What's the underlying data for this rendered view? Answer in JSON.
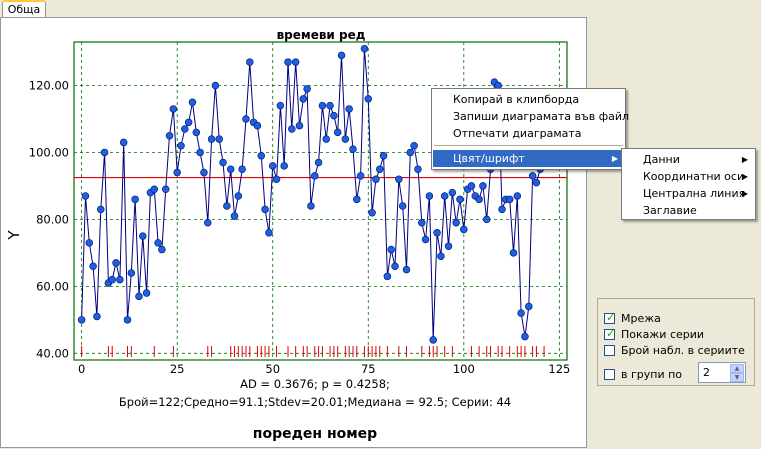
{
  "tab": {
    "label": "Обща"
  },
  "chart_data": {
    "type": "line",
    "title": "времеви ред",
    "xlabel": "пореден номер",
    "ylabel": "Y",
    "xlim": [
      -2,
      127
    ],
    "ylim": [
      38,
      133
    ],
    "x_ticks": [
      0,
      25,
      50,
      75,
      100,
      125
    ],
    "y_ticks": [
      40,
      60,
      80,
      100,
      120
    ],
    "y_tick_labels": [
      "40.00",
      "60.00",
      "80.00",
      "100.00",
      "120.00"
    ],
    "grid": true,
    "series": [
      {
        "color": "#000080",
        "marker_color": "#1f5fe0",
        "x": [
          0,
          1,
          2,
          3,
          4,
          5,
          6,
          7,
          8,
          9,
          10,
          11,
          12,
          13,
          14,
          15,
          16,
          17,
          18,
          19,
          20,
          21,
          22,
          23,
          24,
          25,
          26,
          27,
          28,
          29,
          30,
          31,
          32,
          33,
          34,
          35,
          36,
          37,
          38,
          39,
          40,
          41,
          42,
          43,
          44,
          45,
          46,
          47,
          48,
          49,
          50,
          51,
          52,
          53,
          54,
          55,
          56,
          57,
          58,
          59,
          60,
          61,
          62,
          63,
          64,
          65,
          66,
          67,
          68,
          69,
          70,
          71,
          72,
          73,
          74,
          75,
          76,
          77,
          78,
          79,
          80,
          81,
          82,
          83,
          84,
          85,
          86,
          87,
          88,
          89,
          90,
          91,
          92,
          93,
          94,
          95,
          96,
          97,
          98,
          99,
          100,
          101,
          102,
          103,
          104,
          105,
          106,
          107,
          108,
          109,
          110,
          111,
          112,
          113,
          114,
          115,
          116,
          117,
          118,
          119,
          120,
          121
        ],
        "y": [
          50,
          87,
          73,
          66,
          51,
          83,
          100,
          61,
          62,
          67,
          62,
          103,
          50,
          64,
          86,
          57,
          75,
          58,
          88,
          89,
          73,
          71,
          89,
          105,
          113,
          94,
          102,
          107,
          109,
          115,
          106,
          100,
          94,
          79,
          104,
          120,
          104,
          97,
          84,
          95,
          81,
          87,
          95,
          110,
          127,
          109,
          108,
          99,
          83,
          76,
          96,
          92,
          114,
          96,
          127,
          107,
          127,
          108,
          116,
          119,
          84,
          93,
          97,
          114,
          104,
          114,
          111,
          106,
          129,
          104,
          113,
          101,
          86,
          93,
          131,
          116,
          82,
          92,
          95,
          99,
          63,
          71,
          66,
          92,
          84,
          65,
          100,
          102,
          95,
          79,
          74,
          87,
          44,
          76,
          69,
          87,
          72,
          88,
          79,
          86,
          77,
          89,
          90,
          87,
          86,
          90,
          80,
          95,
          121,
          120,
          83,
          86,
          86,
          70,
          87,
          52,
          45,
          54,
          93,
          91,
          95,
          101
        ]
      }
    ],
    "center_line": {
      "value": 92.5,
      "color": "#e00000"
    },
    "run_marks": [
      0,
      7,
      8,
      12,
      13,
      19,
      24,
      33,
      34,
      39,
      40,
      41,
      42,
      43,
      44,
      46,
      47,
      48,
      49,
      51,
      54,
      56,
      58,
      59,
      61,
      62,
      63,
      65,
      66,
      67,
      69,
      70,
      71,
      72,
      74,
      75,
      76,
      77,
      78,
      80,
      83,
      85,
      89,
      91,
      92,
      93,
      95,
      97,
      102,
      104,
      106,
      107,
      109,
      110,
      112,
      114,
      115,
      116,
      118,
      119,
      121
    ],
    "annotations": [
      "AD = 0.3676; p = 0.4258;",
      "Брой=122;Средно=91.1;Stdev=20.01;Медиана = 92.5; Серии: 44"
    ]
  },
  "context_menu": {
    "items": [
      "Копирай в клипборда",
      "Запиши диаграмата във файл",
      "Отпечати диаграмата"
    ],
    "color_font": "Цвят/шрифт"
  },
  "submenu": {
    "items": [
      {
        "label": "Данни",
        "has_arrow": true
      },
      {
        "label": "Координатни оси",
        "has_arrow": true
      },
      {
        "label": "Централна линия",
        "has_arrow": true
      },
      {
        "label": "Заглавие",
        "has_arrow": false
      }
    ]
  },
  "options": {
    "grid": {
      "label": "Мрежа",
      "checked": true
    },
    "show_runs": {
      "label": "Покажи серии",
      "checked": true
    },
    "count_in_runs": {
      "label": "Брой набл. в сериите",
      "checked": false
    },
    "in_groups": {
      "label": "в групи по",
      "checked": false,
      "value": "2"
    }
  }
}
